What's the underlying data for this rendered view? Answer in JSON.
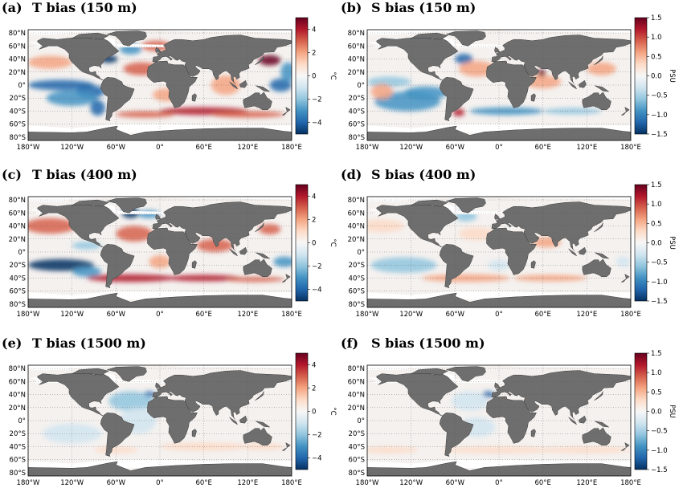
{
  "panels": [
    {
      "id": "a",
      "letter": "(a)",
      "title": "T bias (150 m)",
      "variable": "T",
      "depth_m": 150,
      "colorbar": {
        "unit": "°C",
        "range": [
          -5,
          5
        ],
        "ticks": [
          "4",
          "2",
          "0",
          "−2",
          "−4"
        ]
      }
    },
    {
      "id": "b",
      "letter": "(b)",
      "title": "S bias (150 m)",
      "variable": "S",
      "depth_m": 150,
      "colorbar": {
        "unit": "PSU",
        "range": [
          -1.5,
          1.5
        ],
        "ticks": [
          "1.5",
          "1.0",
          "0.5",
          "0.0",
          "−0.5",
          "−1.0",
          "−1.5"
        ]
      }
    },
    {
      "id": "c",
      "letter": "(c)",
      "title": "T bias (400 m)",
      "variable": "T",
      "depth_m": 400,
      "colorbar": {
        "unit": "°C",
        "range": [
          -5,
          5
        ],
        "ticks": [
          "4",
          "2",
          "0",
          "−2",
          "−4"
        ]
      }
    },
    {
      "id": "d",
      "letter": "(d)",
      "title": "S bias (400 m)",
      "variable": "S",
      "depth_m": 400,
      "colorbar": {
        "unit": "PSU",
        "range": [
          -1.5,
          1.5
        ],
        "ticks": [
          "1.5",
          "1.0",
          "0.5",
          "0.0",
          "−0.5",
          "−1.0",
          "−1.5"
        ]
      }
    },
    {
      "id": "e",
      "letter": "(e)",
      "title": "T bias (1500 m)",
      "variable": "T",
      "depth_m": 1500,
      "colorbar": {
        "unit": "°C",
        "range": [
          -5,
          5
        ],
        "ticks": [
          "4",
          "2",
          "0",
          "−2",
          "−4"
        ]
      }
    },
    {
      "id": "f",
      "letter": "(f)",
      "title": "S bias (1500 m)",
      "variable": "S",
      "depth_m": 1500,
      "colorbar": {
        "unit": "PSU",
        "range": [
          -1.5,
          1.5
        ],
        "ticks": [
          "1.5",
          "1.0",
          "0.5",
          "0.0",
          "−0.5",
          "−1.0",
          "−1.5"
        ]
      }
    }
  ],
  "lat_ticks": [
    "80°N",
    "60°N",
    "40°N",
    "20°N",
    "0°",
    "20°S",
    "40°S",
    "60°S",
    "80°S"
  ],
  "lon_ticks": [
    "180°W",
    "120°W",
    "60°W",
    "0°",
    "60°E",
    "120°E",
    "180°E"
  ],
  "colors": {
    "land": "#6e6e6e",
    "sea_ice": "#ffffff",
    "neutral": "#f4f1ef",
    "colormap": [
      "#053061",
      "#2166ac",
      "#4393c3",
      "#92c5de",
      "#d1e5f0",
      "#f7f7f7",
      "#fddbc7",
      "#f4a582",
      "#d6604d",
      "#b2182b",
      "#67001f"
    ]
  }
}
